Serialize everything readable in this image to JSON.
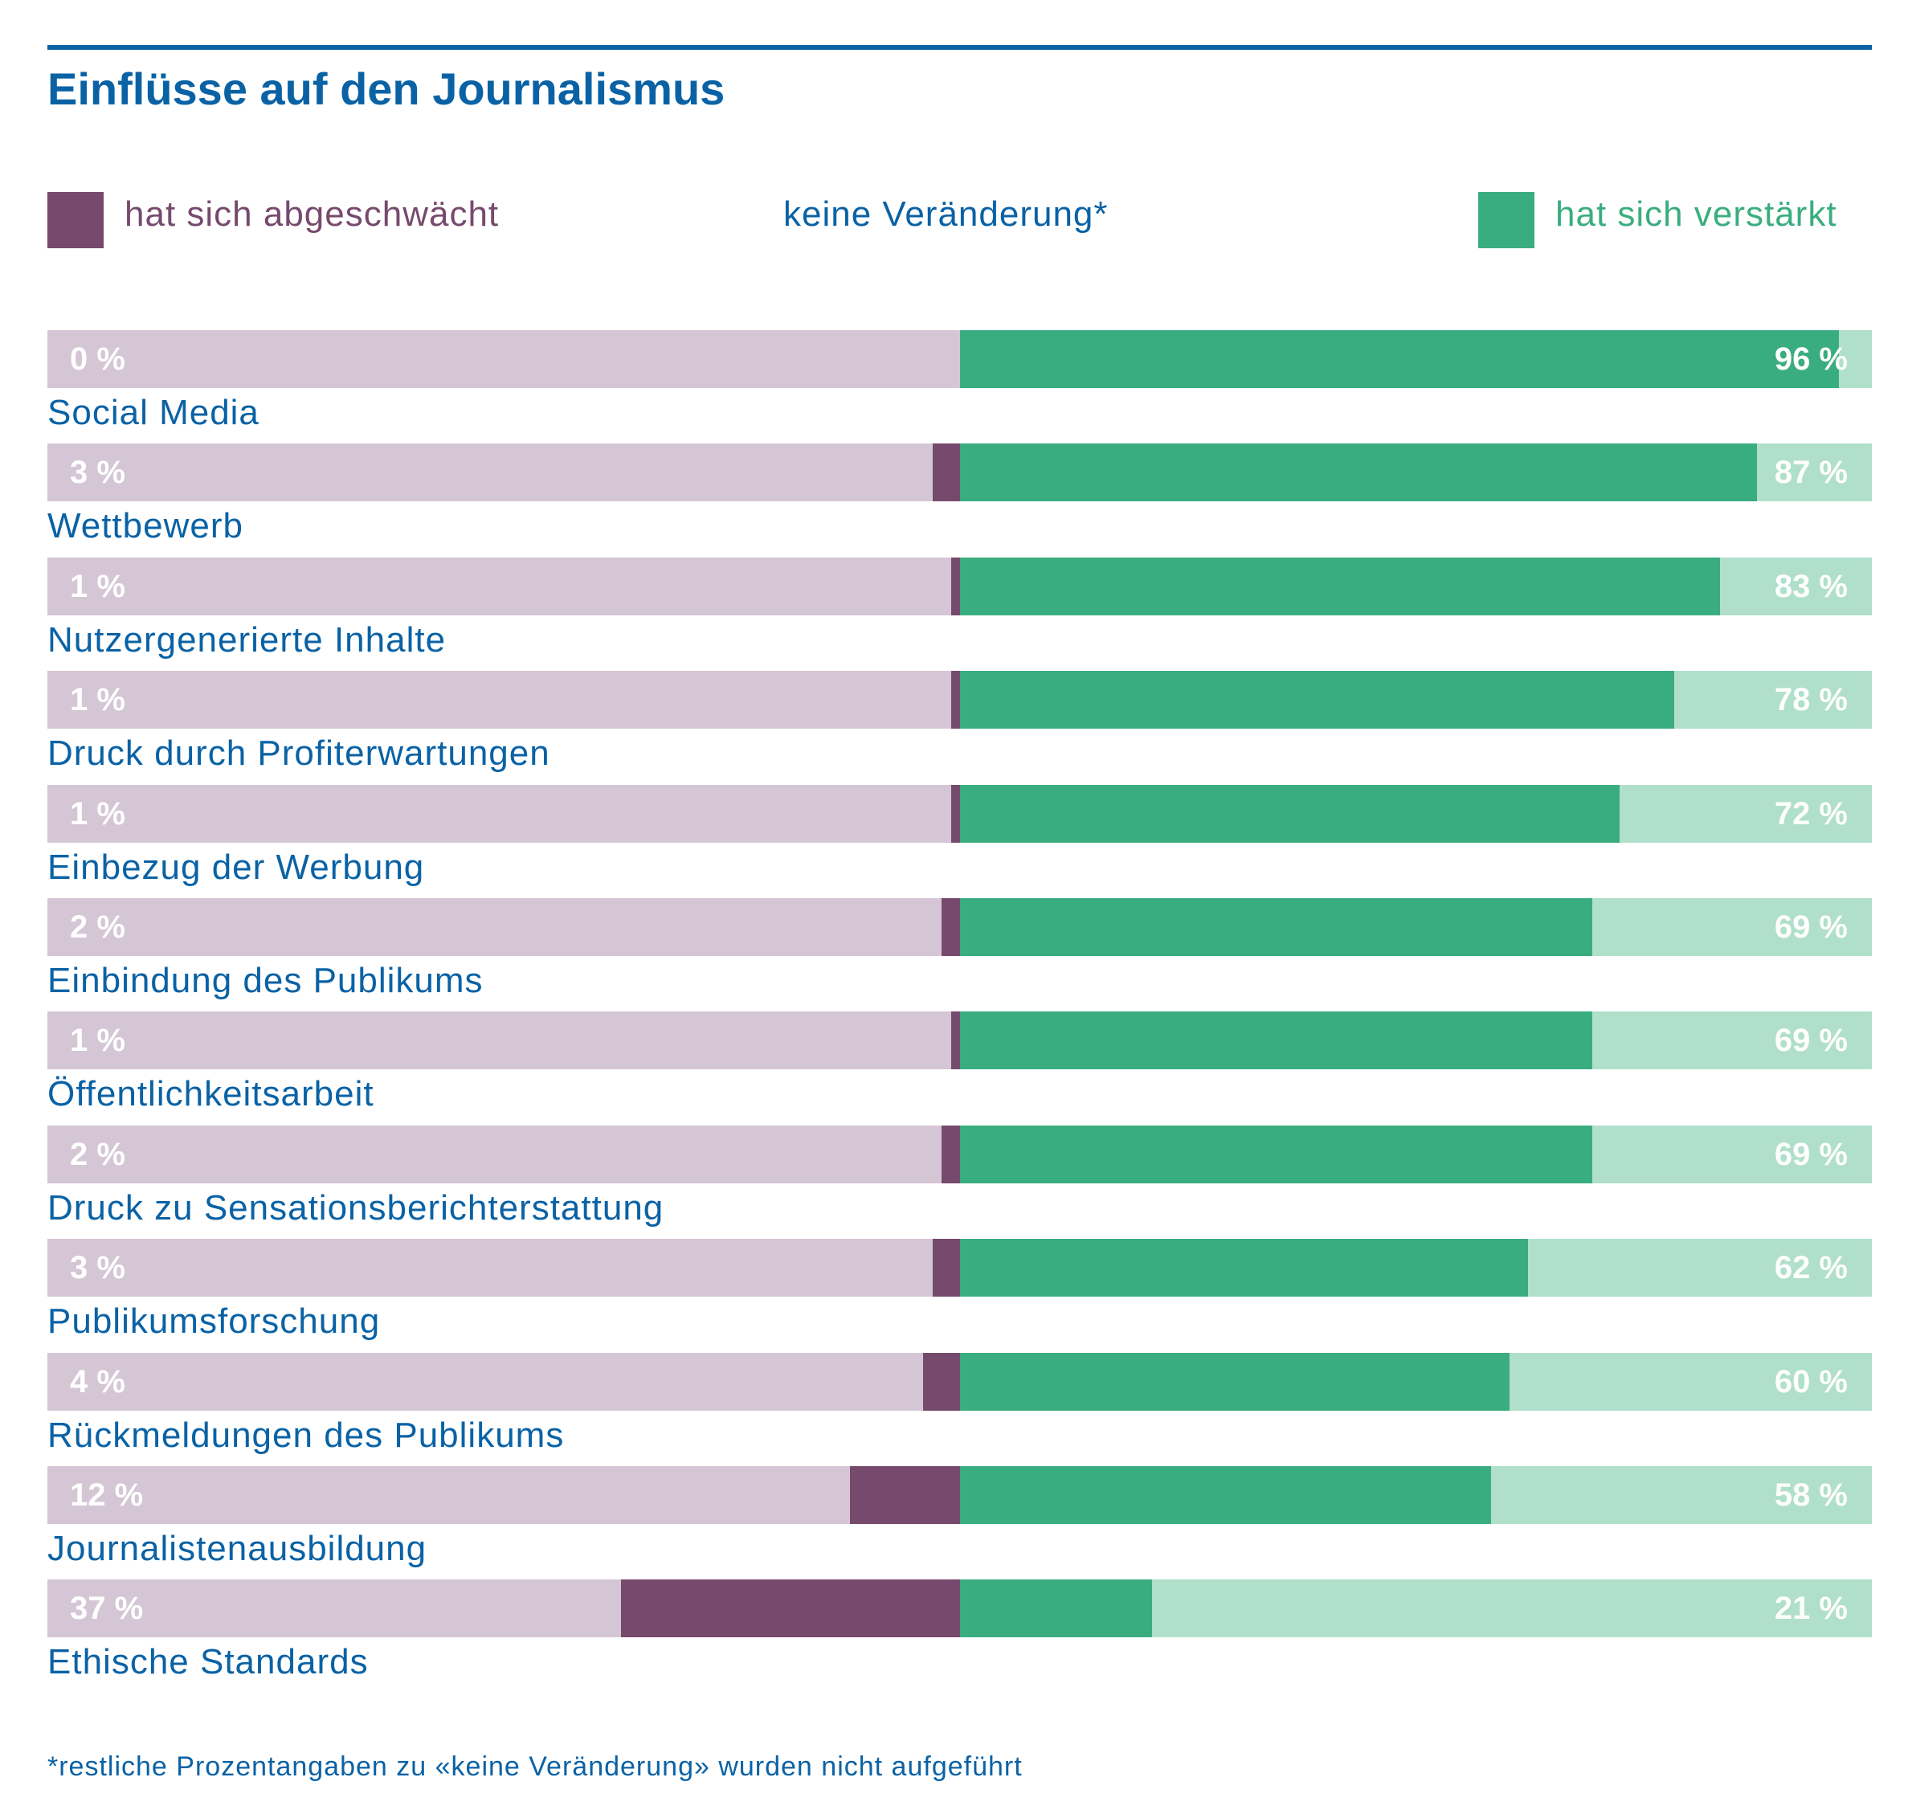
{
  "title": "Einflüsse auf den Journalismus",
  "legend": {
    "decreased": "hat sich abgeschwächt",
    "unchanged": "keine Veränderung*",
    "increased": "hat sich verstärkt"
  },
  "colors": {
    "accent": "#0a62a5",
    "decreased": "#764a6d",
    "decreased_bg": "#d5c6d5",
    "increased": "#3aad80",
    "increased_bg": "#b0dfcb"
  },
  "footnote": "*restliche Prozentangaben zu «keine Veränderung» wurden nicht aufgeführt",
  "chart_data": {
    "type": "bar",
    "orientation": "horizontal-diverging",
    "title": "Einflüsse auf den Journalismus",
    "categories": [
      "Social Media",
      "Wettbewerb",
      "Nutzergenerierte Inhalte",
      "Druck durch Profiterwartungen",
      "Einbezug der Werbung",
      "Einbindung des Publikums",
      "Öffentlichkeitsarbeit",
      "Druck zu Sensationsberichterstattung",
      "Publikumsforschung",
      "Rückmeldungen des Publikums",
      "Journalistenausbildung",
      "Ethische Standards"
    ],
    "series": [
      {
        "name": "hat sich abgeschwächt",
        "values": [
          0,
          3,
          1,
          1,
          1,
          2,
          1,
          2,
          3,
          4,
          12,
          37
        ]
      },
      {
        "name": "hat sich verstärkt",
        "values": [
          96,
          87,
          83,
          78,
          72,
          69,
          69,
          69,
          62,
          60,
          58,
          21
        ]
      }
    ],
    "labels_decreased": [
      "0 %",
      "3 %",
      "1 %",
      "1 %",
      "1 %",
      "2 %",
      "1 %",
      "2 %",
      "3 %",
      "4 %",
      "12 %",
      "37 %"
    ],
    "labels_increased": [
      "96 %",
      "87 %",
      "83 %",
      "78 %",
      "72 %",
      "69 %",
      "69 %",
      "69 %",
      "62 %",
      "60 %",
      "58 %",
      "21 %"
    ],
    "xlim": [
      -100,
      100
    ],
    "unit": "%"
  }
}
